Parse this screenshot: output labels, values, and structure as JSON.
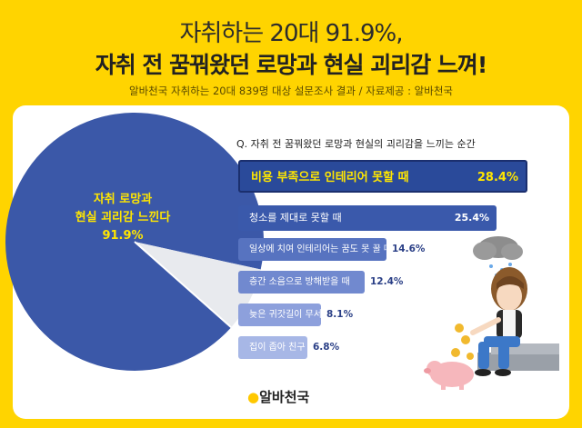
{
  "header": {
    "line1": "자취하는 20대 91.9%,",
    "line2": "자취 전 꿈꿔왔던 로망과 현실 괴리감 느껴!",
    "source": "알바천국 자취하는 20대 839명 대상 설문조사 결과 / 자료제공 : 알바천국"
  },
  "logo": "알바천국",
  "colors": {
    "background": "#FFD400",
    "pie": "#3B58A8",
    "pie_rest": "#E8EAEE",
    "bar_dark": "#2A4A9A",
    "label_yellow": "#FFE600"
  },
  "chart_data": [
    {
      "type": "pie",
      "slices": [
        {
          "label": "자취 로망과\n현실 괴리감 느낀다",
          "value": 91.9
        },
        {
          "label": "",
          "value": 8.1
        }
      ],
      "pie_label_lines": [
        "자취 로망과",
        "현실 괴리감 느낀다",
        "91.9%"
      ]
    },
    {
      "type": "bar",
      "title": "Q. 자취 전 꿈꿔왔던 로망과 현실의 괴리감을 느끼는 순간",
      "categories": [
        "비용 부족으로 인테리어 못할 때",
        "청소를 제대로 못할 때",
        "일상에 치여 인테리어는 꿈도 못 꿀 때",
        "층간 소음으로 방해받을 때",
        "늦은 귀갓길이 무서울 때",
        "집이 좁아 친구 초대 못할 때"
      ],
      "values": [
        28.4,
        25.4,
        14.6,
        12.4,
        8.1,
        6.8
      ],
      "value_labels": [
        "28.4%",
        "25.4%",
        "14.6%",
        "12.4%",
        "8.1%",
        "6.8%"
      ]
    }
  ]
}
